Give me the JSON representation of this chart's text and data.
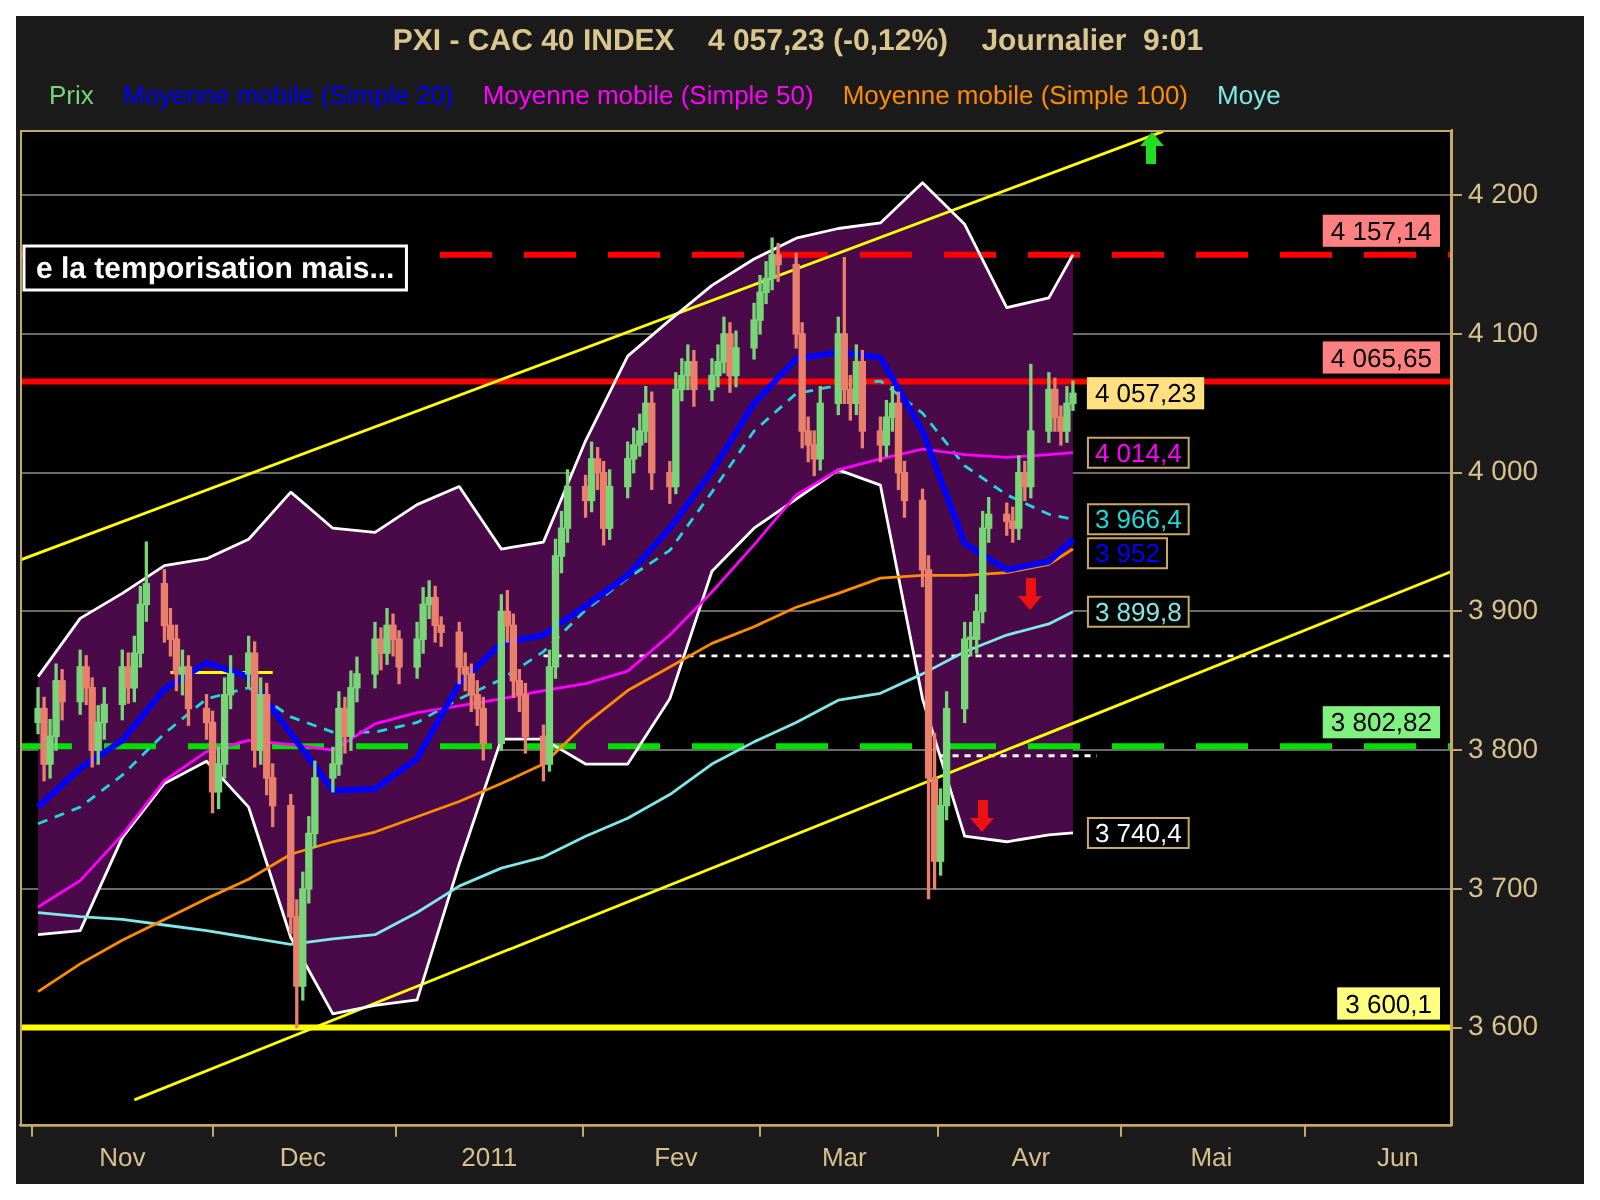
{
  "chart_data": {
    "type": "candlestick",
    "title": "PXI - CAC 40 INDEX    4 057,23 (-0,12%)    Journalier  9:01",
    "xlim": [
      "2010-10-15",
      "2011-06-10"
    ],
    "xticks": [
      {
        "value": "2010-11-01",
        "label": "Nov"
      },
      {
        "value": "2010-12-01",
        "label": "Dec"
      },
      {
        "value": "2011-01-01",
        "label": "2011"
      },
      {
        "value": "2011-02-01",
        "label": "Fev"
      },
      {
        "value": "2011-03-01",
        "label": "Mar"
      },
      {
        "value": "2011-04-01",
        "label": "Avr"
      },
      {
        "value": "2011-05-01",
        "label": "Mai"
      },
      {
        "value": "2011-06-01",
        "label": "Jun"
      }
    ],
    "ylim": [
      3530,
      4247
    ],
    "yticks": [
      {
        "value": 3600,
        "label": "3 600"
      },
      {
        "value": 3700,
        "label": "3 700"
      },
      {
        "value": 3800,
        "label": "3 800"
      },
      {
        "value": 3900,
        "label": "3 900"
      },
      {
        "value": 4000,
        "label": "4 000"
      },
      {
        "value": 4100,
        "label": "4 100"
      },
      {
        "value": 4200,
        "label": "4 200"
      }
    ],
    "grid": "y",
    "legend": "top",
    "series": [
      {
        "name": "Prix",
        "type": "candlestick",
        "color": "#78d678",
        "value_labels": [
          null,
          null,
          null,
          null,
          null,
          null,
          null,
          null,
          null,
          null,
          null,
          null,
          null,
          null,
          null,
          null,
          null,
          null,
          null,
          null,
          null,
          null,
          null,
          null,
          null,
          null,
          null,
          null,
          null,
          null,
          null,
          null,
          null,
          null,
          null,
          null,
          null,
          null,
          null,
          null,
          null,
          null,
          null,
          null,
          null,
          null,
          null,
          null,
          null,
          null,
          null,
          null,
          null,
          null,
          null,
          null,
          null,
          null,
          null,
          null,
          null,
          null,
          null,
          null,
          null,
          null,
          null,
          null,
          null,
          null,
          null,
          null,
          null,
          null,
          null,
          null,
          null,
          null,
          null,
          null,
          null,
          null,
          null,
          null,
          null,
          null,
          null,
          null,
          null,
          null,
          null,
          null,
          null,
          null,
          null,
          null,
          null,
          null,
          null,
          null,
          null,
          null,
          null,
          null,
          null,
          null,
          null,
          null,
          null,
          null,
          null,
          null,
          null,
          null,
          null,
          null,
          null,
          null,
          null,
          null,
          null,
          null,
          null,
          null,
          "4 057,23"
        ],
        "colors": [
          "#78d678",
          "#e8806c",
          "#78d678",
          "#78d678",
          "#e8806c",
          "#78d678",
          "#e8806c",
          "#e8806c",
          "#78d678",
          "#78d678",
          "#78d678",
          "#e8806c",
          "#78d678",
          "#78d678",
          "#78d678",
          "#e8806c",
          "#e8806c",
          "#e8806c",
          "#78d678",
          "#e8806c",
          "#e8806c",
          "#e8806c",
          "#78d678",
          "#78d678",
          "#78d678",
          "#78d678",
          "#e8806c",
          "#78d678",
          "#e8806c",
          "#e8806c",
          "#e8806c",
          "#e8806c",
          "#78d678",
          "#78d678",
          "#78d678",
          "#78d678",
          "#78d678",
          "#e8806c",
          "#78d678",
          "#78d678",
          "#78d678",
          "#e8806c",
          "#78d678",
          "#e8806c",
          "#e8806c",
          "#78d678",
          "#78d678",
          "#78d678",
          "#e8806c",
          "#e8806c",
          "#e8806c",
          "#e8806c",
          "#e8806c",
          "#e8806c",
          "#e8806c",
          "#78d678",
          "#e8806c",
          "#e8806c",
          "#e8806c",
          "#e8806c",
          "#e8806c",
          "#78d678",
          "#78d678",
          "#78d678",
          "#78d678",
          "#e8806c",
          "#78d678",
          "#e8806c",
          "#e8806c",
          "#78d678",
          "#78d678",
          "#78d678",
          "#78d678",
          "#78d678",
          "#e8806c",
          "#e8806c",
          "#78d678",
          "#78d678",
          "#78d678",
          "#e8806c",
          "#78d678",
          "#78d678",
          "#78d678",
          "#e8806c",
          "#78d678",
          "#78d678",
          "#78d678",
          "#78d678",
          "#78d678",
          "#e8806c",
          "#e8806c",
          "#e8806c",
          "#e8806c",
          "#e8806c",
          "#78d678",
          "#78d678",
          "#e8806c",
          "#e8806c",
          "#78d678",
          "#e8806c",
          "#e8806c",
          "#78d678",
          "#78d678",
          "#e8806c",
          "#e8806c",
          "#e8806c",
          "#e8806c",
          "#e8806c",
          "#78d678",
          "#78d678",
          "#78d678",
          "#78d678",
          "#78d678",
          "#78d678",
          "#78d678",
          "#e8806c",
          "#e8806c",
          "#78d678",
          "#e8806c",
          "#78d678",
          "#78d678",
          "#e8806c",
          "#e8806c",
          "#78d678",
          "#78d678"
        ],
        "x": [
          "2010-10-18",
          "2010-10-19",
          "2010-10-20",
          "2010-10-21",
          "2010-10-22",
          "2010-10-25",
          "2010-10-26",
          "2010-10-27",
          "2010-10-28",
          "2010-10-29",
          "2010-11-01",
          "2010-11-02",
          "2010-11-03",
          "2010-11-04",
          "2010-11-05",
          "2010-11-08",
          "2010-11-09",
          "2010-11-10",
          "2010-11-11",
          "2010-11-12",
          "2010-11-15",
          "2010-11-16",
          "2010-11-17",
          "2010-11-18",
          "2010-11-19",
          "2010-11-22",
          "2010-11-23",
          "2010-11-24",
          "2010-11-25",
          "2010-11-26",
          "2010-11-29",
          "2010-11-30",
          "2010-12-01",
          "2010-12-02",
          "2010-12-03",
          "2010-12-06",
          "2010-12-07",
          "2010-12-08",
          "2010-12-09",
          "2010-12-10",
          "2010-12-13",
          "2010-12-14",
          "2010-12-15",
          "2010-12-16",
          "2010-12-17",
          "2010-12-20",
          "2010-12-21",
          "2010-12-22",
          "2010-12-23",
          "2010-12-24",
          "2010-12-27",
          "2010-12-28",
          "2010-12-29",
          "2010-12-30",
          "2010-12-31",
          "2011-01-03",
          "2011-01-04",
          "2011-01-05",
          "2011-01-06",
          "2011-01-07",
          "2011-01-10",
          "2011-01-11",
          "2011-01-12",
          "2011-01-13",
          "2011-01-14",
          "2011-01-17",
          "2011-01-18",
          "2011-01-19",
          "2011-01-20",
          "2011-01-21",
          "2011-01-24",
          "2011-01-25",
          "2011-01-26",
          "2011-01-27",
          "2011-01-28",
          "2011-01-31",
          "2011-02-01",
          "2011-02-02",
          "2011-02-03",
          "2011-02-04",
          "2011-02-07",
          "2011-02-08",
          "2011-02-09",
          "2011-02-10",
          "2011-02-11",
          "2011-02-14",
          "2011-02-15",
          "2011-02-16",
          "2011-02-17",
          "2011-02-18",
          "2011-02-21",
          "2011-02-22",
          "2011-02-23",
          "2011-02-24",
          "2011-02-25",
          "2011-02-28",
          "2011-03-01",
          "2011-03-02",
          "2011-03-03",
          "2011-03-04",
          "2011-03-07",
          "2011-03-08",
          "2011-03-09",
          "2011-03-10",
          "2011-03-11",
          "2011-03-14",
          "2011-03-15",
          "2011-03-16",
          "2011-03-17",
          "2011-03-18",
          "2011-03-21",
          "2011-03-22",
          "2011-03-23",
          "2011-03-24",
          "2011-03-25",
          "2011-03-28",
          "2011-03-29",
          "2011-03-30",
          "2011-03-31",
          "2011-04-01",
          "2011-04-04",
          "2011-04-05",
          "2011-04-06",
          "2011-04-07",
          "2011-04-08"
        ],
        "ohlc": [
          [
            3820,
            3845,
            3812,
            3830
          ],
          [
            3830,
            3838,
            3778,
            3790
          ],
          [
            3790,
            3822,
            3780,
            3810
          ],
          [
            3810,
            3862,
            3800,
            3850
          ],
          [
            3850,
            3858,
            3822,
            3835
          ],
          [
            3835,
            3872,
            3826,
            3860
          ],
          [
            3860,
            3868,
            3833,
            3845
          ],
          [
            3845,
            3852,
            3788,
            3800
          ],
          [
            3800,
            3832,
            3790,
            3820
          ],
          [
            3820,
            3845,
            3808,
            3833
          ],
          [
            3833,
            3872,
            3822,
            3860
          ],
          [
            3860,
            3870,
            3834,
            3845
          ],
          [
            3845,
            3882,
            3835,
            3870
          ],
          [
            3870,
            3918,
            3860,
            3905
          ],
          [
            3905,
            3950,
            3893,
            3920
          ],
          [
            3920,
            3930,
            3878,
            3890
          ],
          [
            3890,
            3902,
            3868,
            3880
          ],
          [
            3880,
            3890,
            3843,
            3855
          ],
          [
            3855,
            3872,
            3840,
            3860
          ],
          [
            3860,
            3868,
            3818,
            3830
          ],
          [
            3830,
            3840,
            3808,
            3820
          ],
          [
            3820,
            3828,
            3755,
            3770
          ],
          [
            3770,
            3802,
            3758,
            3790
          ],
          [
            3790,
            3852,
            3780,
            3840
          ],
          [
            3840,
            3868,
            3830,
            3855
          ],
          [
            3855,
            3882,
            3845,
            3870
          ],
          [
            3870,
            3878,
            3788,
            3800
          ],
          [
            3800,
            3852,
            3790,
            3840
          ],
          [
            3840,
            3848,
            3768,
            3780
          ],
          [
            3780,
            3790,
            3745,
            3760
          ],
          [
            3760,
            3768,
            3668,
            3680
          ],
          [
            3680,
            3692,
            3600.1,
            3630
          ],
          [
            3630,
            3712,
            3620,
            3700
          ],
          [
            3700,
            3752,
            3690,
            3740
          ],
          [
            3740,
            3792,
            3730,
            3780
          ],
          [
            3780,
            3802,
            3770,
            3790
          ],
          [
            3790,
            3842,
            3782,
            3830
          ],
          [
            3830,
            3838,
            3798,
            3810
          ],
          [
            3810,
            3857,
            3800,
            3845
          ],
          [
            3845,
            3867,
            3835,
            3855
          ],
          [
            3855,
            3892,
            3845,
            3880
          ],
          [
            3880,
            3888,
            3858,
            3870
          ],
          [
            3870,
            3902,
            3862,
            3890
          ],
          [
            3890,
            3898,
            3868,
            3880
          ],
          [
            3880,
            3886,
            3848,
            3860
          ],
          [
            3860,
            3892,
            3852,
            3880
          ],
          [
            3880,
            3917,
            3870,
            3905
          ],
          [
            3905,
            3922,
            3895,
            3910
          ],
          [
            3910,
            3918,
            3878,
            3890
          ],
          [
            3890,
            3896,
            3875,
            3885
          ],
          [
            3885,
            3892,
            3848,
            3860
          ],
          [
            3860,
            3870,
            3843,
            3855
          ],
          [
            3855,
            3862,
            3828,
            3840
          ],
          [
            3840,
            3850,
            3818,
            3830
          ],
          [
            3830,
            3838,
            3793,
            3805
          ],
          [
            3805,
            3912,
            3800,
            3900
          ],
          [
            3900,
            3915,
            3878,
            3890
          ],
          [
            3890,
            3898,
            3838,
            3850
          ],
          [
            3850,
            3858,
            3828,
            3840
          ],
          [
            3840,
            3848,
            3798,
            3810
          ],
          [
            3810,
            3818,
            3778,
            3790
          ],
          [
            3790,
            3872,
            3785,
            3860
          ],
          [
            3860,
            3952,
            3852,
            3940
          ],
          [
            3940,
            3972,
            3928,
            3960
          ],
          [
            3960,
            4002,
            3950,
            3990
          ],
          [
            3990,
            3998,
            3968,
            3980
          ],
          [
            3980,
            4022,
            3972,
            4010
          ],
          [
            4010,
            4018,
            3988,
            4000
          ],
          [
            4000,
            4008,
            3948,
            3960
          ],
          [
            3960,
            4002,
            3952,
            3990
          ],
          [
            3990,
            4022,
            3982,
            4010
          ],
          [
            4010,
            4032,
            4000,
            4020
          ],
          [
            4020,
            4042,
            4012,
            4030
          ],
          [
            4030,
            4062,
            4022,
            4050
          ],
          [
            4050,
            4058,
            3988,
            4000
          ],
          [
            4000,
            4008,
            3978,
            3990
          ],
          [
            3990,
            4072,
            3985,
            4060
          ],
          [
            4060,
            4082,
            4052,
            4070
          ],
          [
            4070,
            4092,
            4060,
            4080
          ],
          [
            4080,
            4088,
            4048,
            4060
          ],
          [
            4060,
            4082,
            4052,
            4070
          ],
          [
            4070,
            4092,
            4062,
            4080
          ],
          [
            4080,
            4112,
            4072,
            4100
          ],
          [
            4100,
            4108,
            4058,
            4070
          ],
          [
            4070,
            4102,
            4062,
            4090
          ],
          [
            4090,
            4122,
            4082,
            4110
          ],
          [
            4110,
            4142,
            4100,
            4130
          ],
          [
            4130,
            4152,
            4122,
            4140
          ],
          [
            4140,
            4169,
            4132,
            4157
          ],
          [
            4157,
            4165,
            4138,
            4150
          ],
          [
            4150,
            4158,
            4090,
            4100
          ],
          [
            4100,
            4108,
            4018,
            4030
          ],
          [
            4030,
            4040,
            4008,
            4020
          ],
          [
            4020,
            4030,
            3998,
            4010
          ],
          [
            4010,
            4062,
            4002,
            4050
          ],
          [
            4050,
            4112,
            4042,
            4100
          ],
          [
            4100,
            4155,
            4050,
            4060
          ],
          [
            4060,
            4070,
            4038,
            4050
          ],
          [
            4050,
            4092,
            4042,
            4080
          ],
          [
            4080,
            4088,
            4018,
            4030
          ],
          [
            4030,
            4040,
            4008,
            4020
          ],
          [
            4020,
            4052,
            4012,
            4040
          ],
          [
            4040,
            4062,
            4030,
            4050
          ],
          [
            4050,
            4058,
            3988,
            4000
          ],
          [
            4000,
            4008,
            3968,
            3980
          ],
          [
            3980,
            3988,
            3918,
            3930
          ],
          [
            3930,
            3940,
            3693,
            3780
          ],
          [
            3780,
            3812,
            3700,
            3720
          ],
          [
            3720,
            3772,
            3710,
            3760
          ],
          [
            3760,
            3842,
            3750,
            3830
          ],
          [
            3830,
            3892,
            3820,
            3880
          ],
          [
            3880,
            3892,
            3868,
            3880
          ],
          [
            3880,
            3912,
            3870,
            3900
          ],
          [
            3900,
            3972,
            3892,
            3960
          ],
          [
            3960,
            3982,
            3950,
            3970
          ],
          [
            3970,
            3978,
            3955,
            3965
          ],
          [
            3965,
            3975,
            3950,
            3960
          ],
          [
            3960,
            4012,
            3952,
            4000
          ],
          [
            4000,
            4008,
            3980,
            3990
          ],
          [
            3990,
            4078,
            3982,
            4030
          ],
          [
            4030,
            4072,
            4022,
            4060
          ],
          [
            4060,
            4068,
            4030,
            4040
          ],
          [
            4040,
            4048,
            4020,
            4030
          ],
          [
            4030,
            4062,
            4022,
            4050
          ],
          [
            4050,
            4066,
            4045,
            4057.23
          ]
        ]
      },
      {
        "name": "Moyenne mobile (Simple 20)",
        "type": "line",
        "color": "#0000ff",
        "x": [
          "2010-10-18",
          "2010-10-25",
          "2010-11-01",
          "2010-11-08",
          "2010-11-15",
          "2010-11-22",
          "2010-11-29",
          "2010-12-06",
          "2010-12-13",
          "2010-12-20",
          "2010-12-27",
          "2011-01-03",
          "2011-01-10",
          "2011-01-17",
          "2011-01-24",
          "2011-01-31",
          "2011-02-07",
          "2011-02-14",
          "2011-02-21",
          "2011-02-28",
          "2011-03-07",
          "2011-03-14",
          "2011-03-21",
          "2011-03-28",
          "2011-04-04",
          "2011-04-08"
        ],
        "values": [
          3759,
          3787,
          3807,
          3844,
          3863,
          3853,
          3812,
          3771,
          3772,
          3794,
          3848,
          3877,
          3883,
          3904,
          3926,
          3960,
          4001,
          4050,
          4082,
          4087,
          4083,
          4030,
          3949,
          3930,
          3936,
          3952
        ],
        "upper": [
          3853,
          3895,
          3913,
          3933,
          3938,
          3952,
          3986,
          3960,
          3957,
          3977,
          3990,
          3945,
          3950,
          4023,
          4084,
          4110,
          4135,
          4154,
          4169,
          4176,
          4180,
          4209,
          4179,
          4119,
          4126,
          4157.14
        ],
        "lower": [
          3667,
          3670,
          3737,
          3776,
          3792,
          3759,
          3665,
          3610,
          3616,
          3620,
          3718,
          3808,
          3808,
          3790,
          3790,
          3837,
          3929,
          3960,
          3981,
          4002,
          3991,
          3837,
          3738,
          3734,
          3739,
          3740.4
        ],
        "value_labels": [
          null,
          null,
          null,
          null,
          null,
          null,
          null,
          null,
          null,
          null,
          null,
          null,
          null,
          null,
          null,
          null,
          null,
          null,
          null,
          null,
          null,
          null,
          null,
          null,
          null,
          "3 952"
        ]
      },
      {
        "name": "Moyenne mobile (Simple 50)",
        "type": "line",
        "color": "#ff00ff",
        "x": [
          "2010-10-18",
          "2010-10-25",
          "2010-11-01",
          "2010-11-08",
          "2010-11-15",
          "2010-11-22",
          "2010-11-29",
          "2010-12-06",
          "2010-12-13",
          "2010-12-20",
          "2010-12-27",
          "2011-01-03",
          "2011-01-10",
          "2011-01-17",
          "2011-01-24",
          "2011-01-31",
          "2011-02-07",
          "2011-02-14",
          "2011-02-21",
          "2011-02-28",
          "2011-03-07",
          "2011-03-14",
          "2011-03-21",
          "2011-03-28",
          "2011-04-04",
          "2011-04-08"
        ],
        "values": [
          3687,
          3706,
          3739,
          3778,
          3799,
          3807,
          3804,
          3800,
          3819,
          3827,
          3832,
          3837,
          3843,
          3848,
          3857,
          3883,
          3914,
          3948,
          3984,
          4002,
          4010,
          4017,
          4013,
          4011,
          4013,
          4014.4
        ],
        "value_labels": [
          null,
          null,
          null,
          null,
          null,
          null,
          null,
          null,
          null,
          null,
          null,
          null,
          null,
          null,
          null,
          null,
          null,
          null,
          null,
          null,
          null,
          null,
          null,
          null,
          null,
          "4 014,4"
        ]
      },
      {
        "name": "Moyenne mobile (Simple 100)",
        "type": "line",
        "color": "#ff8c00",
        "x": [
          "2010-10-18",
          "2010-10-25",
          "2010-11-01",
          "2010-11-08",
          "2010-11-15",
          "2010-11-22",
          "2010-11-29",
          "2010-12-06",
          "2010-12-13",
          "2010-12-20",
          "2010-12-27",
          "2011-01-03",
          "2011-01-10",
          "2011-01-17",
          "2011-01-24",
          "2011-01-31",
          "2011-02-07",
          "2011-02-14",
          "2011-02-21",
          "2011-02-28",
          "2011-03-07",
          "2011-03-14",
          "2011-03-21",
          "2011-03-28",
          "2011-04-04",
          "2011-04-08"
        ],
        "values": [
          3626,
          3646,
          3663,
          3678,
          3693,
          3707,
          3725,
          3734,
          3741,
          3752,
          3763,
          3776,
          3790,
          3819,
          3843,
          3860,
          3877,
          3889,
          3903,
          3913,
          3924,
          3926,
          3926,
          3928,
          3934,
          3945
        ]
      },
      {
        "name": "Moye",
        "type": "line",
        "color": "#80e8e8",
        "x": [
          "2010-10-18",
          "2010-10-25",
          "2010-11-01",
          "2010-11-08",
          "2010-11-15",
          "2010-11-22",
          "2010-11-29",
          "2010-12-06",
          "2010-12-13",
          "2010-12-20",
          "2010-12-27",
          "2011-01-03",
          "2011-01-10",
          "2011-01-17",
          "2011-01-24",
          "2011-01-31",
          "2011-02-07",
          "2011-02-14",
          "2011-02-21",
          "2011-02-28",
          "2011-03-07",
          "2011-03-14",
          "2011-03-21",
          "2011-03-28",
          "2011-04-04",
          "2011-04-08"
        ],
        "values": [
          3683,
          3680,
          3678,
          3674,
          3670,
          3665,
          3660,
          3664,
          3667,
          3683,
          3702,
          3715,
          3723,
          3738,
          3751,
          3768,
          3790,
          3806,
          3820,
          3836,
          3841,
          3855,
          3871,
          3883,
          3891,
          3899.8
        ],
        "value_labels": [
          null,
          null,
          null,
          null,
          null,
          null,
          null,
          null,
          null,
          null,
          null,
          null,
          null,
          null,
          null,
          null,
          null,
          null,
          null,
          null,
          null,
          null,
          null,
          null,
          null,
          "3 899,8"
        ]
      },
      {
        "type": "line",
        "color": "#20d8d8",
        "line_style": "dashed",
        "x": [
          "2010-10-18",
          "2010-10-25",
          "2010-11-01",
          "2010-11-08",
          "2010-11-15",
          "2010-11-22",
          "2010-11-29",
          "2010-12-06",
          "2010-12-13",
          "2010-12-20",
          "2010-12-27",
          "2011-01-03",
          "2011-01-10",
          "2011-01-17",
          "2011-01-24",
          "2011-01-31",
          "2011-02-07",
          "2011-02-14",
          "2011-02-21",
          "2011-02-28",
          "2011-03-07",
          "2011-03-14",
          "2011-03-21",
          "2011-03-28",
          "2011-04-04",
          "2011-04-08"
        ],
        "values": [
          3747,
          3759,
          3782,
          3812,
          3837,
          3845,
          3824,
          3813,
          3813,
          3820,
          3837,
          3851,
          3871,
          3901,
          3924,
          3944,
          3986,
          4030,
          4057,
          4063,
          4066,
          4043,
          4005,
          3984,
          3970,
          3966.4
        ],
        "value_labels": [
          null,
          null,
          null,
          null,
          null,
          null,
          null,
          null,
          null,
          null,
          null,
          null,
          null,
          null,
          null,
          null,
          null,
          null,
          null,
          null,
          null,
          null,
          null,
          null,
          null,
          "3 966,4"
        ]
      },
      {
        "type": "line",
        "color": "#ffffff",
        "x": [
          "2010-10-18",
          "2010-10-25",
          "2010-11-01",
          "2010-11-08",
          "2010-11-15",
          "2010-11-22",
          "2010-11-29",
          "2010-12-06",
          "2010-12-13",
          "2010-12-20",
          "2010-12-27",
          "2011-01-03",
          "2011-01-10",
          "2011-01-17",
          "2011-01-24",
          "2011-01-31",
          "2011-02-07",
          "2011-02-14",
          "2011-02-21",
          "2011-02-28",
          "2011-03-07",
          "2011-03-14",
          "2011-03-21",
          "2011-03-28",
          "2011-04-04",
          "2011-04-08"
        ],
        "values": [
          3853,
          3895,
          3913,
          3933,
          3938,
          3952,
          3986,
          3960,
          3957,
          3977,
          3990,
          3945,
          3950,
          4023,
          4084,
          4110,
          4135,
          4154,
          4169,
          4176,
          4180,
          4209,
          4179,
          4119,
          4126,
          4157.14
        ]
      },
      {
        "type": "line",
        "color": "#ffffff",
        "x": [
          "2010-10-18",
          "2010-10-25",
          "2010-11-01",
          "2010-11-08",
          "2010-11-15",
          "2010-11-22",
          "2010-11-29",
          "2010-12-06",
          "2010-12-13",
          "2010-12-20",
          "2010-12-27",
          "2011-01-03",
          "2011-01-10",
          "2011-01-17",
          "2011-01-24",
          "2011-01-31",
          "2011-02-07",
          "2011-02-14",
          "2011-02-21",
          "2011-02-28",
          "2011-03-07",
          "2011-03-14",
          "2011-03-21",
          "2011-03-28",
          "2011-04-04",
          "2011-04-08"
        ],
        "values": [
          3667,
          3670,
          3737,
          3776,
          3792,
          3759,
          3665,
          3610,
          3616,
          3620,
          3718,
          3808,
          3808,
          3790,
          3790,
          3837,
          3929,
          3960,
          3981,
          4002,
          3991,
          3837,
          3738,
          3734,
          3739,
          3740.4
        ]
      },
      {
        "type": "line",
        "color": "#ffff00",
        "x": [
          "2010-10-15",
          "2011-04-23"
        ],
        "values": [
          3937,
          4246
        ]
      },
      {
        "type": "line",
        "color": "#ffff00",
        "x": [
          "2010-11-03",
          "2011-06-10"
        ],
        "values": [
          3548,
          3929
        ]
      },
      {
        "type": "line",
        "color": "#ffff00",
        "x": [
          "2010-11-09",
          "2010-11-26"
        ],
        "values": [
          3856,
          3856
        ]
      },
      {
        "type": "line",
        "color": "#ffffff",
        "line_style": "dotted",
        "x": [
          "2011-01-10",
          "2011-06-10"
        ],
        "values": [
          3868,
          3868
        ]
      },
      {
        "type": "line",
        "color": "#ffffff",
        "line_style": "dotted",
        "x": [
          "2011-03-17",
          "2011-04-12"
        ],
        "values": [
          3796,
          3796
        ]
      }
    ],
    "ref_lines": [
      {
        "axis": "y",
        "value": 4157.14,
        "label": "4 157,14",
        "color": "#ff0000",
        "line_style": "dashed"
      },
      {
        "axis": "y",
        "value": 4065.65,
        "label": "4 065,65",
        "color": "#ff0000",
        "line_style": "solid"
      },
      {
        "axis": "y",
        "value": 3802.82,
        "label": "3 802,82",
        "color": "#00e000",
        "line_style": "dashed"
      },
      {
        "axis": "y",
        "value": 3600.1,
        "label": "3 600,1",
        "color": "#ffff00",
        "line_style": "solid"
      }
    ],
    "annotations": [
      "e la temporisation mais...",
      "3 740,4"
    ]
  }
}
